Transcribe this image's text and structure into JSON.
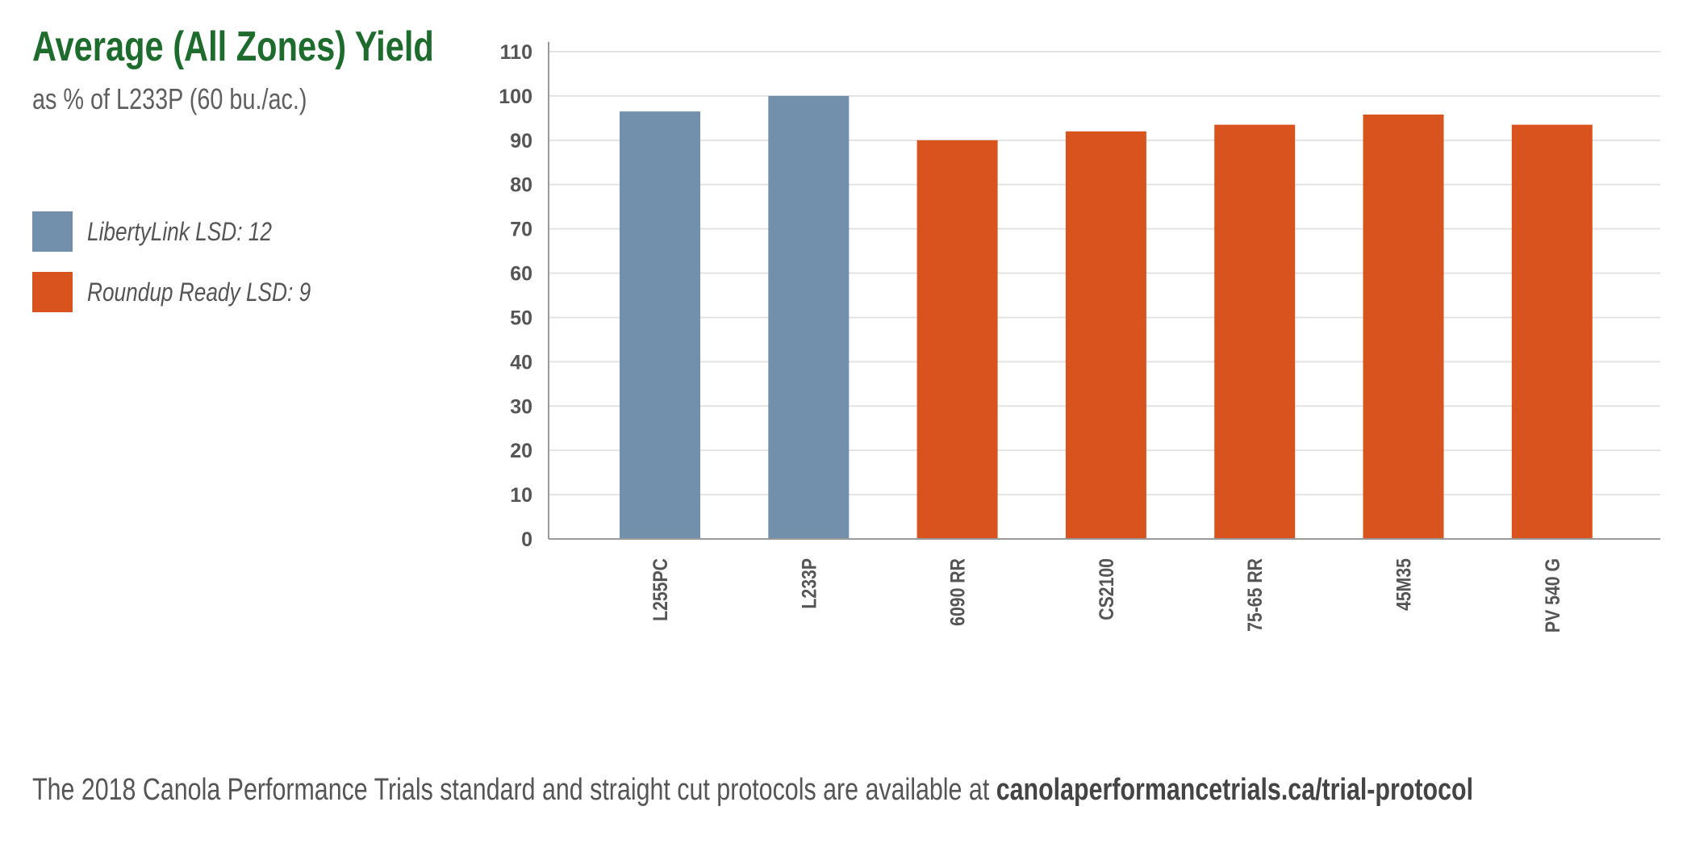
{
  "header": {
    "title": "Average (All Zones) Yield",
    "subtitle": "as % of L233P (60 bu./ac.)"
  },
  "legend": {
    "items": [
      {
        "label": "LibertyLink LSD: 12",
        "color": "#7290ab"
      },
      {
        "label": "Roundup Ready LSD: 9",
        "color": "#d9531e"
      }
    ]
  },
  "footer": {
    "text": "The 2018 Canola Performance Trials standard and straight cut protocols are available at ",
    "link": "canolaperformancetrials.ca/trial-protocol"
  },
  "colors": {
    "title": "#1e6b2e",
    "libertylink": "#7290ab",
    "roundup_ready": "#d9531e",
    "gridline": "#e3e3e3",
    "axis": "#999999"
  },
  "chart_data": {
    "type": "bar",
    "title": "Average (All Zones) Yield",
    "subtitle": "as % of L233P (60 bu./ac.)",
    "categories": [
      "L255PC",
      "L233P",
      "6090 RR",
      "CS2100",
      "75-65 RR",
      "45M35",
      "PV 540 G"
    ],
    "values": [
      96.5,
      100,
      90,
      92,
      93.5,
      95.8,
      93.5
    ],
    "groups": [
      "LibertyLink LSD: 12",
      "LibertyLink LSD: 12",
      "Roundup Ready LSD: 9",
      "Roundup Ready LSD: 9",
      "Roundup Ready LSD: 9",
      "Roundup Ready LSD: 9",
      "Roundup Ready LSD: 9"
    ],
    "ylim": [
      0,
      110
    ],
    "yticks": [
      0,
      10,
      20,
      30,
      40,
      50,
      60,
      70,
      80,
      90,
      100,
      110
    ],
    "xlabel": "",
    "ylabel": "",
    "grid": true,
    "legend_position": "left"
  }
}
